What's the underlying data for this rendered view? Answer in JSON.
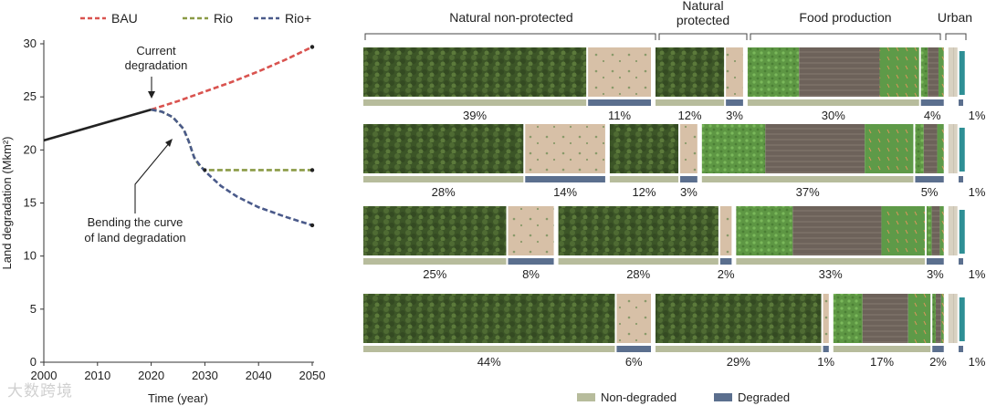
{
  "chart_data": [
    {
      "type": "line",
      "xlabel": "Time (year)",
      "ylabel": "Land degradation (Mkm²)",
      "xlim": [
        2000,
        2050
      ],
      "ylim": [
        0,
        30
      ],
      "x_ticks": [
        "2000",
        "2010",
        "2020",
        "2030",
        "2040",
        "2050"
      ],
      "y_ticks": [
        "0",
        "5",
        "10",
        "15",
        "20",
        "25",
        "30"
      ],
      "grid": false,
      "legend_position": "top",
      "series": [
        {
          "name": "BAU",
          "color": "#d9534f",
          "style": "dashed",
          "x": [
            2020,
            2025,
            2030,
            2035,
            2040,
            2045,
            2050
          ],
          "y": [
            23.8,
            24.6,
            25.5,
            26.4,
            27.4,
            28.5,
            29.7
          ]
        },
        {
          "name": "Rio",
          "color": "#8a9a45",
          "style": "dashed",
          "x": [
            2020,
            2022,
            2024,
            2026,
            2027,
            2028,
            2029,
            2030,
            2035,
            2040,
            2045,
            2050
          ],
          "y": [
            23.8,
            23.6,
            23.1,
            22.0,
            20.8,
            19.3,
            18.5,
            18.1,
            18.1,
            18.1,
            18.1,
            18.1
          ]
        },
        {
          "name": "Rio+",
          "color": "#4a5a8a",
          "style": "dashed",
          "x": [
            2020,
            2022,
            2024,
            2026,
            2027,
            2028,
            2029,
            2030,
            2033,
            2036,
            2040,
            2045,
            2050
          ],
          "y": [
            23.8,
            23.6,
            23.1,
            22.0,
            20.8,
            19.3,
            18.6,
            18.0,
            16.6,
            15.6,
            14.6,
            13.7,
            12.9
          ]
        }
      ],
      "historical": {
        "color": "#222222",
        "x": [
          2000,
          2020
        ],
        "y": [
          20.9,
          23.8
        ]
      },
      "annotations": [
        {
          "text": "Current degradation"
        },
        {
          "text": "Bending the curve of land degradation"
        }
      ]
    },
    {
      "type": "bar",
      "orientation": "stacked-horizontal",
      "categories": [
        "Natural non-protected",
        "Natural protected",
        "Food production",
        "Urban"
      ],
      "legend": [
        {
          "label": "Non-degraded",
          "color": "#b7bc9c"
        },
        {
          "label": "Degraded",
          "color": "#5b6f8e"
        }
      ],
      "rows": [
        {
          "segments": [
            {
              "group": "Natural non-protected",
              "state": "Non-degraded",
              "value": 39
            },
            {
              "group": "Natural non-protected",
              "state": "Degraded",
              "value": 11
            },
            {
              "group": "Natural protected",
              "state": "Non-degraded",
              "value": 12
            },
            {
              "group": "Natural protected",
              "state": "Degraded",
              "value": 3
            },
            {
              "group": "Food production",
              "state": "Non-degraded",
              "value": 30
            },
            {
              "group": "Food production",
              "state": "Degraded",
              "value": 4
            },
            {
              "group": "Urban",
              "state": "Degraded",
              "value": 1
            }
          ]
        },
        {
          "segments": [
            {
              "group": "Natural non-protected",
              "state": "Non-degraded",
              "value": 28
            },
            {
              "group": "Natural non-protected",
              "state": "Degraded",
              "value": 14
            },
            {
              "group": "Natural protected",
              "state": "Non-degraded",
              "value": 12
            },
            {
              "group": "Natural protected",
              "state": "Degraded",
              "value": 3
            },
            {
              "group": "Food production",
              "state": "Non-degraded",
              "value": 37
            },
            {
              "group": "Food production",
              "state": "Degraded",
              "value": 5
            },
            {
              "group": "Urban",
              "state": "Degraded",
              "value": 1
            }
          ]
        },
        {
          "segments": [
            {
              "group": "Natural non-protected",
              "state": "Non-degraded",
              "value": 25
            },
            {
              "group": "Natural non-protected",
              "state": "Degraded",
              "value": 8
            },
            {
              "group": "Natural protected",
              "state": "Non-degraded",
              "value": 28
            },
            {
              "group": "Natural protected",
              "state": "Degraded",
              "value": 2
            },
            {
              "group": "Food production",
              "state": "Non-degraded",
              "value": 33
            },
            {
              "group": "Food production",
              "state": "Degraded",
              "value": 3
            },
            {
              "group": "Urban",
              "state": "Degraded",
              "value": 1
            }
          ]
        },
        {
          "segments": [
            {
              "group": "Natural non-protected",
              "state": "Non-degraded",
              "value": 44
            },
            {
              "group": "Natural non-protected",
              "state": "Degraded",
              "value": 6
            },
            {
              "group": "Natural protected",
              "state": "Non-degraded",
              "value": 29
            },
            {
              "group": "Natural protected",
              "state": "Degraded",
              "value": 1
            },
            {
              "group": "Food production",
              "state": "Non-degraded",
              "value": 17
            },
            {
              "group": "Food production",
              "state": "Degraded",
              "value": 2
            },
            {
              "group": "Urban",
              "state": "Degraded",
              "value": 1
            }
          ]
        }
      ]
    }
  ],
  "watermark": "大数跨境",
  "colors": {
    "forest": "#3f5a2a",
    "bare_land": "#d8c1a8",
    "crop": "#5f9a45",
    "soil": "#6e635a",
    "urban": "#d9d2c2"
  }
}
